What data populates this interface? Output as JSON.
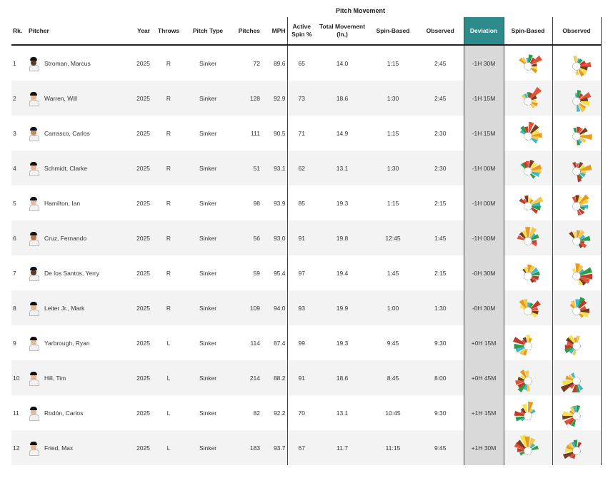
{
  "group_header": "Pitch Movement",
  "columns": {
    "rank": "Rk.",
    "pitcher": "Pitcher",
    "year": "Year",
    "throws": "Throws",
    "pitch_type": "Pitch Type",
    "pitches": "Pitches",
    "mph": "MPH",
    "active_spin": "Active Spin %",
    "total_movement": "Total Movement (In.)",
    "spin_based": "Spin-Based",
    "observed": "Observed",
    "deviation": "Deviation",
    "spin_based_chart": "Spin-Based",
    "observed_chart": "Observed"
  },
  "colors": {
    "deviation_header": "#2e8b8b",
    "deviation_cell": "#d9d9d9",
    "glyph_palette": [
      "#e89a1a",
      "#f2c94c",
      "#3fb6c9",
      "#2a9d4a",
      "#c0392b",
      "#e0523a",
      "#7a3b1e",
      "#f7e04a"
    ]
  },
  "rows": [
    {
      "rank": "1",
      "pitcher": "Stroman, Marcus",
      "skin": "#5a3a24",
      "year": "2025",
      "throws": "R",
      "pitch_type": "Sinker",
      "pitches": "72",
      "mph": "89.6",
      "active_spin": "65",
      "total_movement": "14.0",
      "spin_based": "1:15",
      "observed": "2:45",
      "deviation": "-1H 30M"
    },
    {
      "rank": "2",
      "pitcher": "Warren, Will",
      "skin": "#e8b89a",
      "year": "2025",
      "throws": "R",
      "pitch_type": "Sinker",
      "pitches": "128",
      "mph": "92.9",
      "active_spin": "73",
      "total_movement": "18.6",
      "spin_based": "1:30",
      "observed": "2:45",
      "deviation": "-1H 15M"
    },
    {
      "rank": "3",
      "pitcher": "Carrasco, Carlos",
      "skin": "#c48a62",
      "year": "2025",
      "throws": "R",
      "pitch_type": "Sinker",
      "pitches": "111",
      "mph": "90.5",
      "active_spin": "71",
      "total_movement": "14.9",
      "spin_based": "1:15",
      "observed": "2:30",
      "deviation": "-1H 15M"
    },
    {
      "rank": "4",
      "pitcher": "Schmidt, Clarke",
      "skin": "#e8b89a",
      "year": "2025",
      "throws": "R",
      "pitch_type": "Sinker",
      "pitches": "51",
      "mph": "93.1",
      "active_spin": "62",
      "total_movement": "13.1",
      "spin_based": "1:30",
      "observed": "2:30",
      "deviation": "-1H 00M"
    },
    {
      "rank": "5",
      "pitcher": "Hamilton, Ian",
      "skin": "#e8b89a",
      "year": "2025",
      "throws": "R",
      "pitch_type": "Sinker",
      "pitches": "98",
      "mph": "93.9",
      "active_spin": "85",
      "total_movement": "19.3",
      "spin_based": "1:15",
      "observed": "2:15",
      "deviation": "-1H 00M"
    },
    {
      "rank": "6",
      "pitcher": "Cruz, Fernando",
      "skin": "#b57a52",
      "year": "2025",
      "throws": "R",
      "pitch_type": "Sinker",
      "pitches": "56",
      "mph": "93.0",
      "active_spin": "91",
      "total_movement": "19.8",
      "spin_based": "12:45",
      "observed": "1:45",
      "deviation": "-1H 00M"
    },
    {
      "rank": "7",
      "pitcher": "De los Santos, Yerry",
      "skin": "#5a3a24",
      "year": "2025",
      "throws": "R",
      "pitch_type": "Sinker",
      "pitches": "59",
      "mph": "95.4",
      "active_spin": "97",
      "total_movement": "19.4",
      "spin_based": "1:45",
      "observed": "2:15",
      "deviation": "-0H 30M"
    },
    {
      "rank": "8",
      "pitcher": "Leiter Jr., Mark",
      "skin": "#e8b89a",
      "year": "2025",
      "throws": "R",
      "pitch_type": "Sinker",
      "pitches": "109",
      "mph": "94.0",
      "active_spin": "93",
      "total_movement": "19.9",
      "spin_based": "1:00",
      "observed": "1:30",
      "deviation": "-0H 30M"
    },
    {
      "rank": "9",
      "pitcher": "Yarbrough, Ryan",
      "skin": "#e8b89a",
      "year": "2025",
      "throws": "L",
      "pitch_type": "Sinker",
      "pitches": "114",
      "mph": "87.4",
      "active_spin": "99",
      "total_movement": "19.3",
      "spin_based": "9:45",
      "observed": "9:30",
      "deviation": "+0H 15M"
    },
    {
      "rank": "10",
      "pitcher": "Hill, Tim",
      "skin": "#e8b89a",
      "year": "2025",
      "throws": "L",
      "pitch_type": "Sinker",
      "pitches": "214",
      "mph": "88.2",
      "active_spin": "91",
      "total_movement": "18.6",
      "spin_based": "8:45",
      "observed": "8:00",
      "deviation": "+0H 45M"
    },
    {
      "rank": "11",
      "pitcher": "Rodón, Carlos",
      "skin": "#e8b89a",
      "year": "2025",
      "throws": "L",
      "pitch_type": "Sinker",
      "pitches": "82",
      "mph": "92.2",
      "active_spin": "70",
      "total_movement": "13.1",
      "spin_based": "10:45",
      "observed": "9:30",
      "deviation": "+1H 15M"
    },
    {
      "rank": "12",
      "pitcher": "Fried, Max",
      "skin": "#e8b89a",
      "year": "2025",
      "throws": "L",
      "pitch_type": "Sinker",
      "pitches": "183",
      "mph": "93.7",
      "active_spin": "67",
      "total_movement": "11.7",
      "spin_based": "11:15",
      "observed": "9:45",
      "deviation": "+1H 30M"
    }
  ]
}
